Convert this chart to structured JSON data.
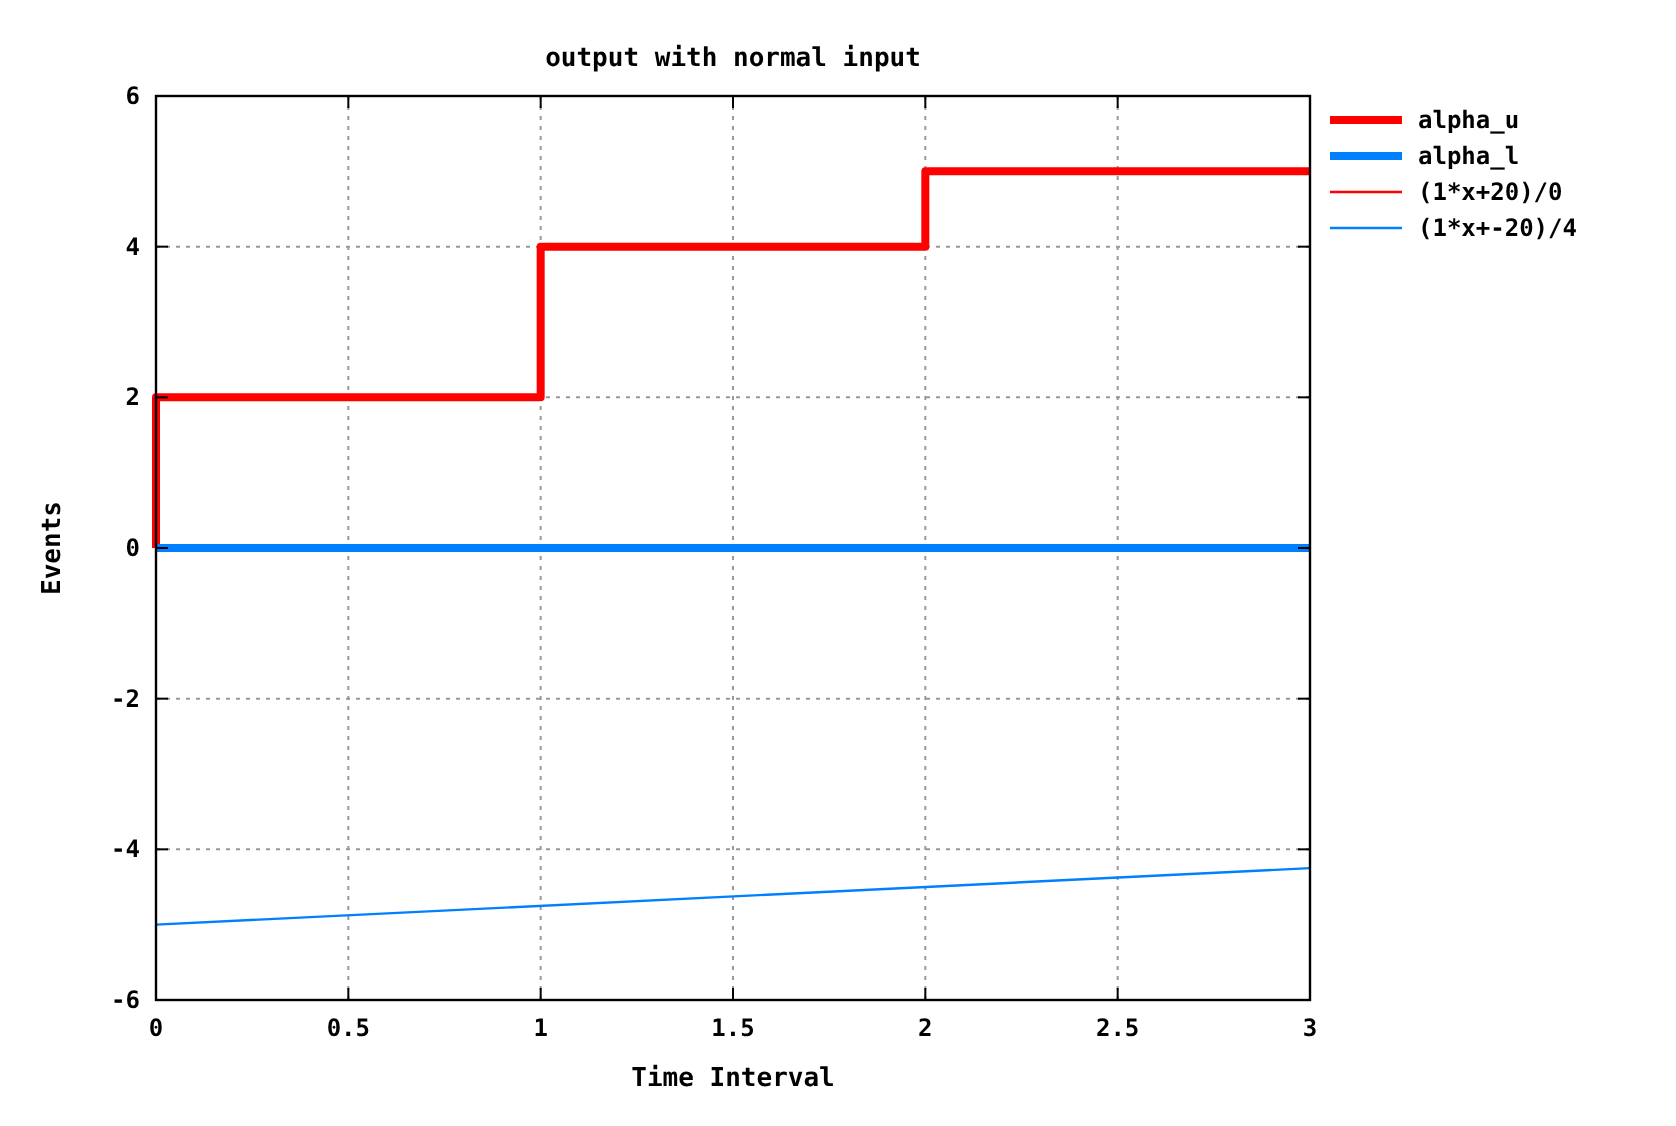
{
  "chart_data": {
    "type": "line",
    "title": "output with normal input",
    "xlabel": "Time Interval",
    "ylabel": "Events",
    "xlim": [
      0,
      3
    ],
    "xticks": [
      0,
      {
        "value": 0.5,
        "label": "0.5"
      },
      1,
      {
        "value": 1.5,
        "label": "1.5"
      },
      2,
      {
        "value": 2.5,
        "label": "2.5"
      },
      3
    ],
    "ylim": [
      -6,
      6
    ],
    "yticks": [
      -6,
      -4,
      -2,
      0,
      2,
      4,
      6
    ],
    "grid": true,
    "legend": "top right",
    "line_style": "solid",
    "series": [
      {
        "name": "alpha_u",
        "type": "step",
        "color": "#ff0000",
        "x": [
          0,
          0,
          1,
          2,
          3
        ],
        "values": [
          0,
          2,
          4,
          5,
          5
        ]
      },
      {
        "name": "alpha_l",
        "type": "line",
        "color": "#0080ff",
        "x": [
          0,
          3
        ],
        "values": [
          0,
          0
        ]
      },
      {
        "name": "(1*x+20)/0",
        "color": "#ff0000"
      },
      {
        "name": "(1*x+-20)/4",
        "type": "line",
        "color": "#0080ff",
        "x": [
          0,
          3
        ],
        "values": [
          -5,
          -4.25
        ]
      }
    ]
  }
}
